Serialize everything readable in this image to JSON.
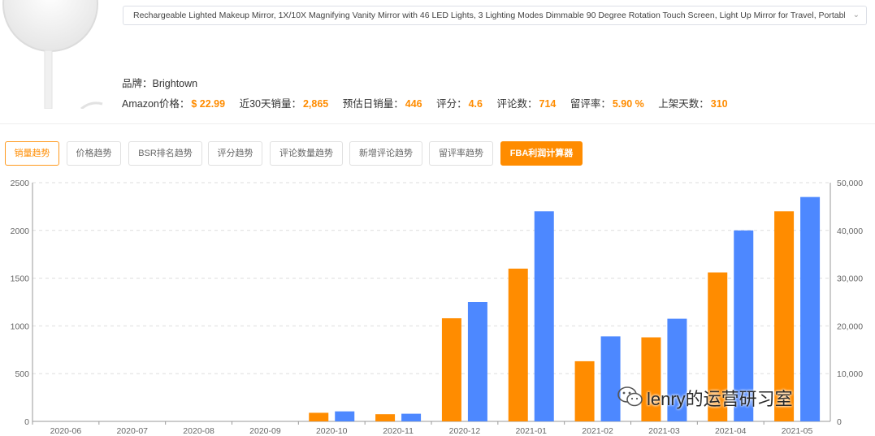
{
  "product": {
    "title": "Rechargeable Lighted Makeup Mirror, 1X/10X Magnifying Vanity Mirror with 46 LED Lights, 3 Lighting Modes Dimmable 90 Degree Rotation Touch Screen, Light Up Mirror for Travel, Portable",
    "brand_label": "品牌：",
    "brand": "Brightown",
    "stats": [
      {
        "label": "Amazon价格：",
        "value": "$ 22.99"
      },
      {
        "label": "近30天销量：",
        "value": "2,865"
      },
      {
        "label": "预估日销量：",
        "value": "446"
      },
      {
        "label": "评分：",
        "value": "4.6"
      },
      {
        "label": "评论数：",
        "value": "714"
      },
      {
        "label": "留评率：",
        "value": "5.90 %"
      },
      {
        "label": "上架天数：",
        "value": "310"
      }
    ]
  },
  "tabs": [
    {
      "label": "销量趋势",
      "state": "active"
    },
    {
      "label": "价格趋势",
      "state": "normal"
    },
    {
      "label": "BSR排名趋势",
      "state": "normal"
    },
    {
      "label": "评分趋势",
      "state": "normal"
    },
    {
      "label": "评论数量趋势",
      "state": "normal"
    },
    {
      "label": "新增评论趋势",
      "state": "normal"
    },
    {
      "label": "留评率趋势",
      "state": "normal"
    },
    {
      "label": "FBA利润计算器",
      "state": "primary"
    }
  ],
  "chart_data": {
    "type": "bar",
    "title": "",
    "xlabel": "",
    "ylabel": "",
    "categories": [
      "2020-06",
      "2020-07",
      "2020-08",
      "2020-09",
      "2020-10",
      "2020-11",
      "2020-12",
      "2021-01",
      "2021-02",
      "2021-03",
      "2021-04",
      "2021-05"
    ],
    "series": [
      {
        "color": "#ff8c00",
        "axis": "left",
        "values": [
          0,
          0,
          0,
          0,
          90,
          75,
          1080,
          1600,
          630,
          880,
          1560,
          2200
        ]
      },
      {
        "color": "#4d88ff",
        "axis": "right",
        "values": [
          0,
          0,
          0,
          0,
          2100,
          1600,
          25000,
          44000,
          17800,
          21500,
          40000,
          47000
        ]
      }
    ],
    "y_left": {
      "min": 0,
      "max": 2500,
      "ticks": [
        0,
        500,
        1000,
        1500,
        2000,
        2500
      ],
      "tick_labels": [
        "0",
        "500",
        "1000",
        "1500",
        "2000",
        "2500"
      ]
    },
    "y_right": {
      "min": 0,
      "max": 50000,
      "ticks": [
        0,
        10000,
        20000,
        30000,
        40000,
        50000
      ],
      "tick_labels": [
        "0",
        "10,000",
        "20,000",
        "30,000",
        "40,000",
        "50,000"
      ]
    },
    "grid": true,
    "legend": "none"
  },
  "watermark": {
    "text": "lenry的运营研习室",
    "icon": "wechat-icon"
  }
}
